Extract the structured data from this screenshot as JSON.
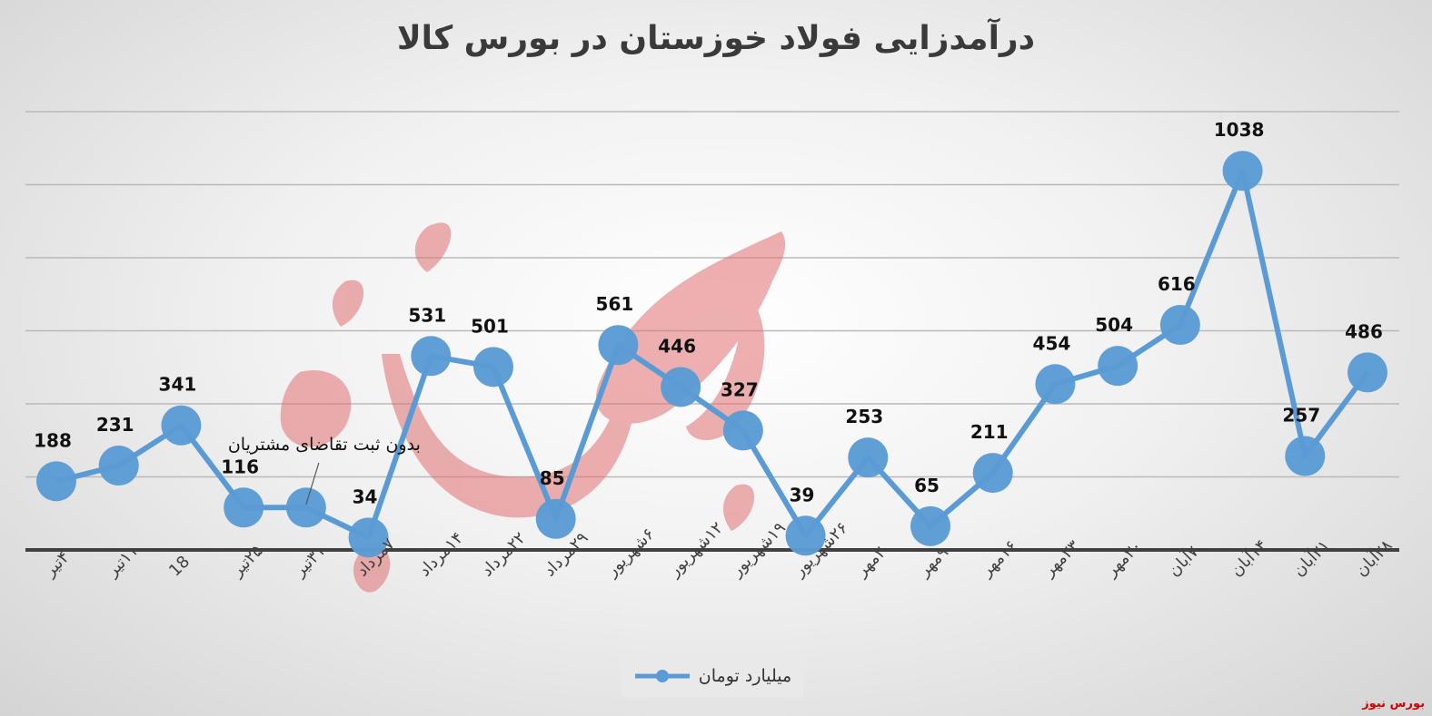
{
  "chart_data": {
    "type": "line",
    "title": "درآمدزایی فولاد خوزستان در بورس کالا",
    "categories": [
      "۴تیر",
      "۱۱تیر",
      "18",
      "۲۵تیر",
      "۳۱تیر",
      "۷مرداد",
      "۱۴مرداد",
      "۲۲مرداد",
      "۲۹مرداد",
      "۶شهریور",
      "۱۲شهریور",
      "۱۹شهریور",
      "۲۶شهریور",
      "۲مهر",
      "۹مهر",
      "۱۶مهر",
      "۲۳مهر",
      "۳۰مهر",
      "۷آبان",
      "۱۴آبان",
      "۲۱آبان",
      "۲۸آبان"
    ],
    "series": [
      {
        "name": "میلیارد تومان",
        "values": [
          188,
          231,
          341,
          116,
          null,
          34,
          531,
          501,
          85,
          561,
          446,
          327,
          39,
          253,
          65,
          211,
          454,
          504,
          616,
          1038,
          257,
          486
        ],
        "color": "#5b9bd5"
      }
    ],
    "annotations": [
      {
        "category_index": 4,
        "text": "بدون ثبت تقاضای مشتریان"
      }
    ],
    "ylim": [
      0,
      1200
    ],
    "y_gridlines": [
      0,
      200,
      400,
      600,
      800,
      1000,
      1200
    ],
    "grid": true,
    "legend_position": "bottom"
  },
  "source": "بورس نیوز",
  "watermark": "بورس نیوز",
  "colors": {
    "series": "#5b9bd5",
    "watermark": "#e07070",
    "brand": "#d00000"
  }
}
